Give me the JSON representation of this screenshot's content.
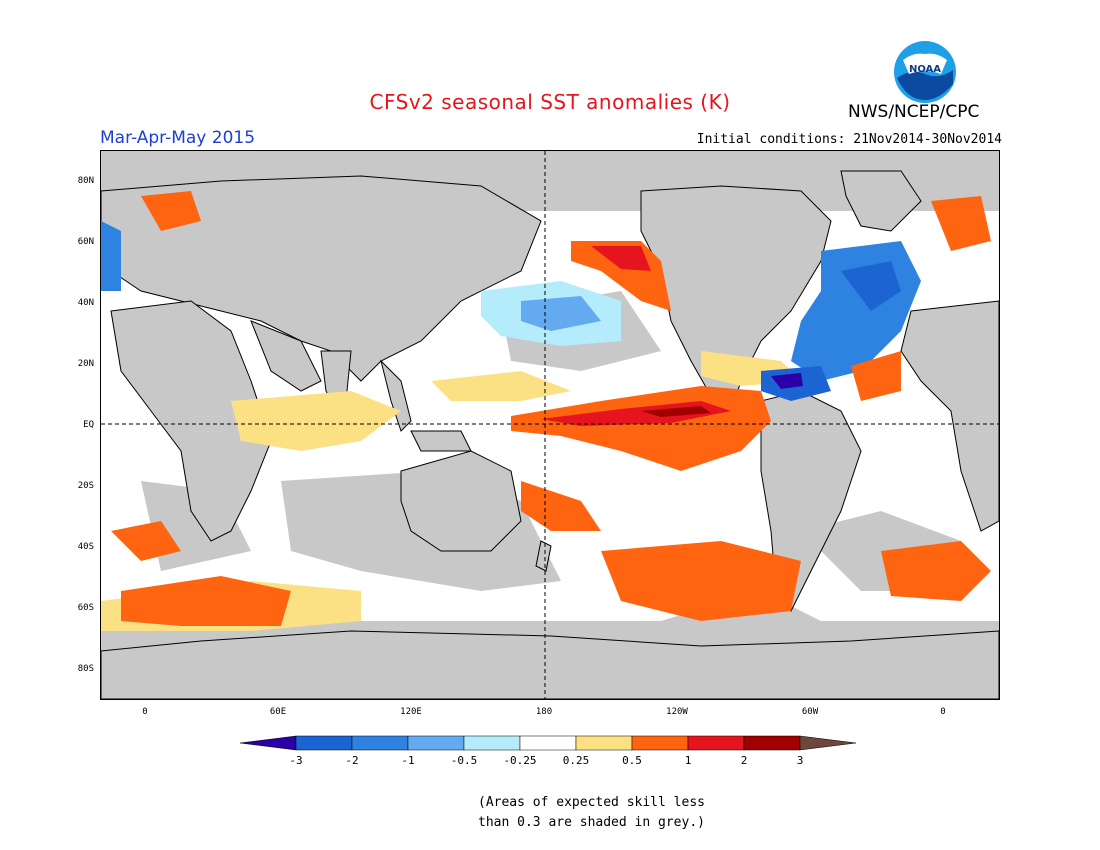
{
  "header": {
    "title": "CFSv2 seasonal SST anomalies (K)",
    "agency": "NWS/NCEP/CPC",
    "season": "Mar-Apr-May 2015",
    "initial_conditions": "Initial conditions: 21Nov2014-30Nov2014",
    "logo_text": "NOAA"
  },
  "map": {
    "projection": "cylindrical equidistant",
    "lat_labels": [
      "80N",
      "60N",
      "40N",
      "20N",
      "EQ",
      "20S",
      "40S",
      "60S",
      "80S"
    ],
    "lon_labels": [
      "0",
      "60E",
      "120E",
      "180",
      "120W",
      "60W",
      "0"
    ],
    "reference_lines": [
      "equator",
      "date line (180)"
    ],
    "land_color": "#c8c8c8",
    "grey_meaning": "Areas of expected skill less than 0.3 are shaded in grey."
  },
  "colorbar": {
    "labels": [
      "-3",
      "-2",
      "-1",
      "-0.5",
      "-0.25",
      "0.25",
      "0.5",
      "1",
      "2",
      "3"
    ],
    "colors": [
      "#2b00a6",
      "#1b64d1",
      "#2e82e0",
      "#64aaf0",
      "#b4ecfc",
      "#ffffff",
      "#fce184",
      "#ff6410",
      "#e6141e",
      "#a00000",
      "#6e463c"
    ]
  },
  "footnote": {
    "line1": "(Areas of expected skill less",
    "line2": "than 0.3 are shaded in grey.)"
  }
}
